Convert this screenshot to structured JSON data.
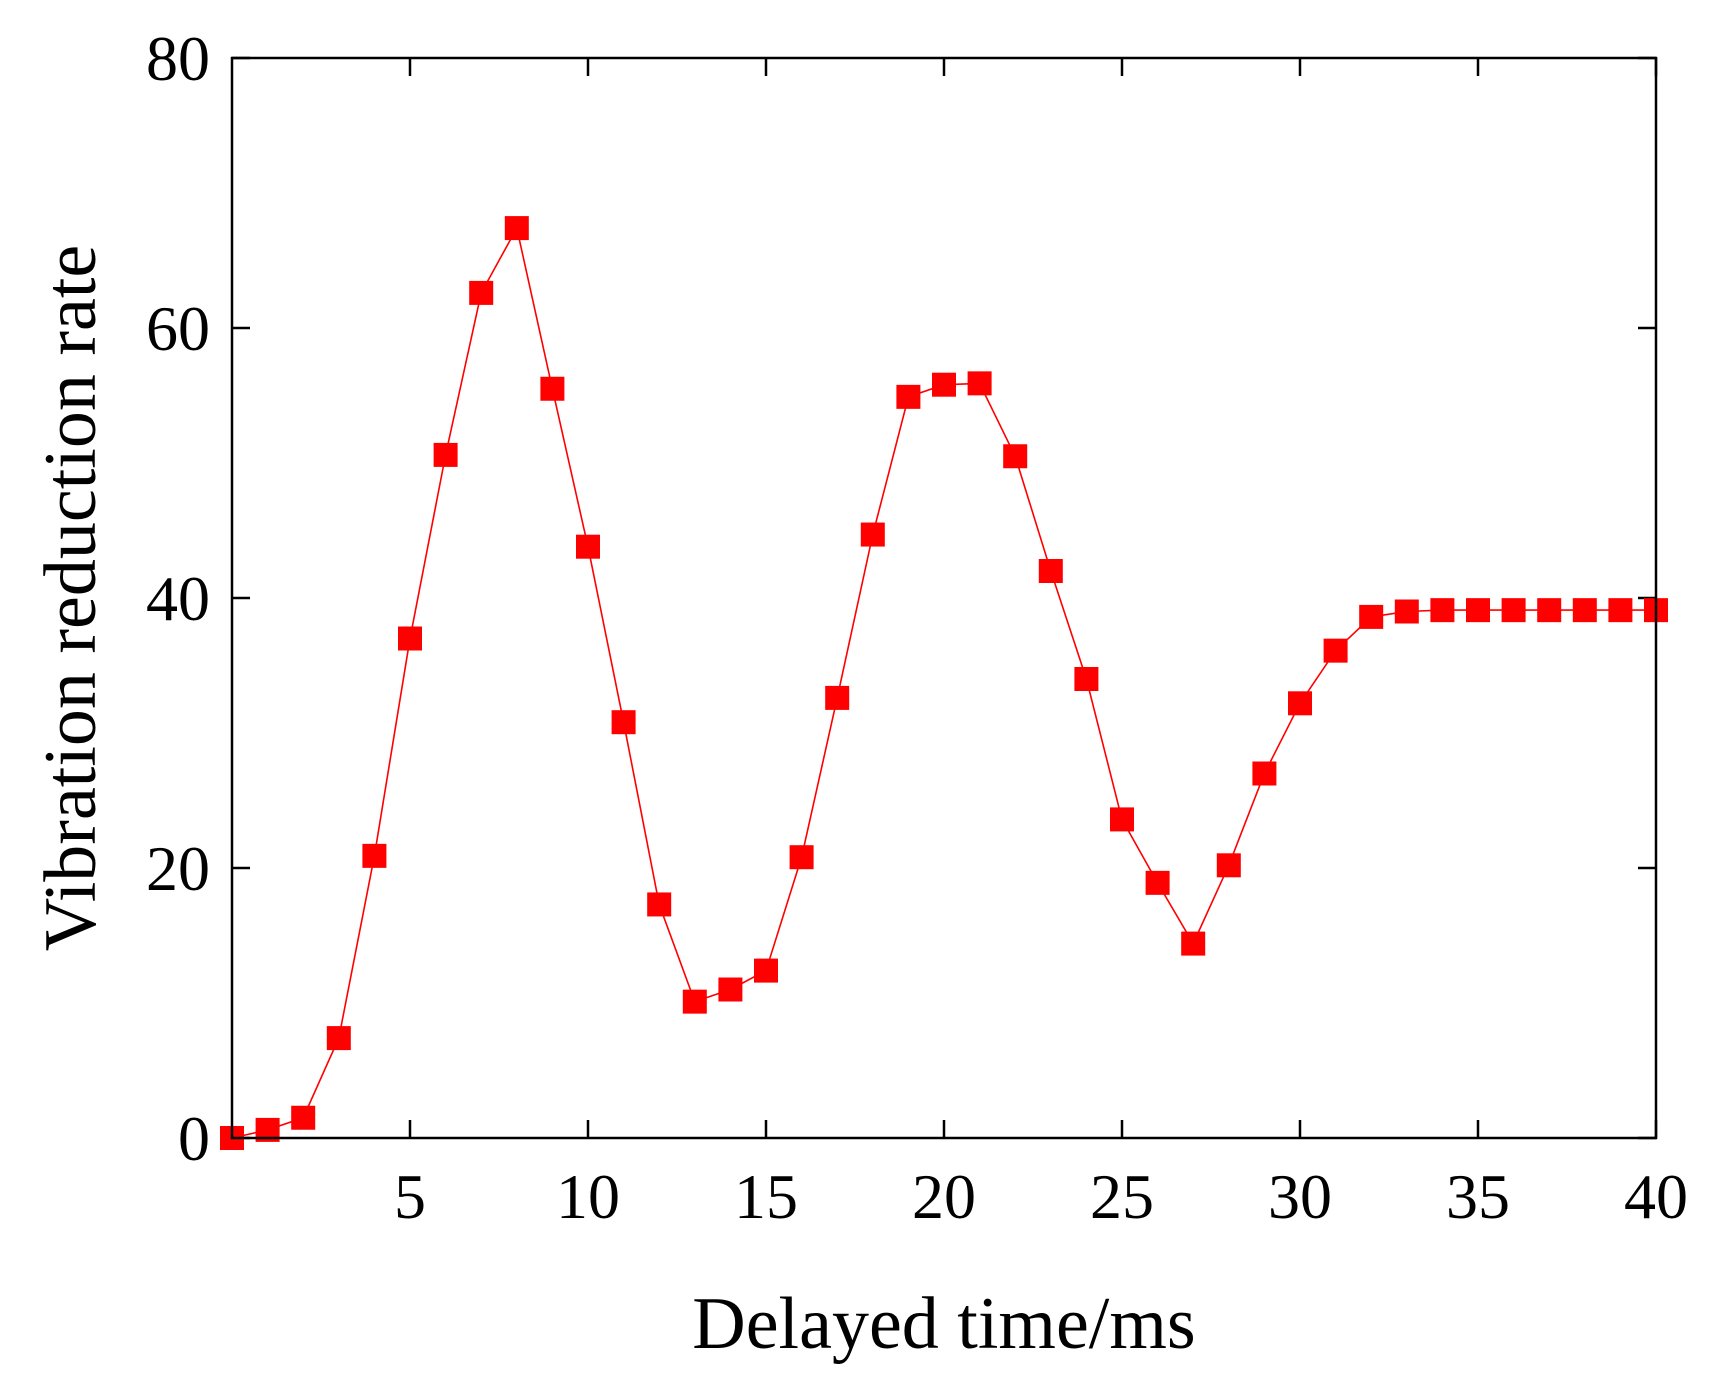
{
  "chart_data": {
    "type": "line",
    "title": "",
    "xlabel": "Delayed time/ms",
    "ylabel": "Vibration reduction rate",
    "xlim": [
      0,
      40
    ],
    "ylim": [
      0,
      80
    ],
    "xticks": [
      5,
      10,
      15,
      20,
      25,
      30,
      35,
      40
    ],
    "xtick_labels": [
      "5",
      "10",
      "15",
      "20",
      "25",
      "30",
      "35",
      "40"
    ],
    "yticks": [
      0,
      20,
      40,
      60,
      80
    ],
    "ytick_labels": [
      "0",
      "20",
      "40",
      "60",
      "80"
    ],
    "grid": false,
    "legend": "none",
    "series": [
      {
        "color": "#ff0000",
        "marker": "square",
        "x": [
          0,
          1,
          2,
          3,
          4,
          5,
          6,
          7,
          8,
          9,
          10,
          11,
          12,
          13,
          14,
          15,
          16,
          17,
          18,
          19,
          20,
          21,
          22,
          23,
          24,
          25,
          26,
          27,
          28,
          29,
          30,
          31,
          32,
          33,
          34,
          35,
          36,
          37,
          38,
          39,
          40
        ],
        "y": [
          0,
          0.6,
          1.5,
          7.4,
          20.9,
          37.0,
          50.6,
          62.6,
          67.4,
          55.5,
          43.8,
          30.8,
          17.3,
          10.1,
          11.0,
          12.4,
          20.8,
          32.6,
          44.7,
          54.9,
          55.8,
          55.9,
          50.5,
          42.0,
          34.0,
          23.6,
          18.9,
          14.4,
          20.2,
          27.0,
          32.2,
          36.1,
          38.6,
          39.0,
          39.1,
          39.1,
          39.1,
          39.1,
          39.1,
          39.1,
          39.1
        ]
      }
    ]
  }
}
